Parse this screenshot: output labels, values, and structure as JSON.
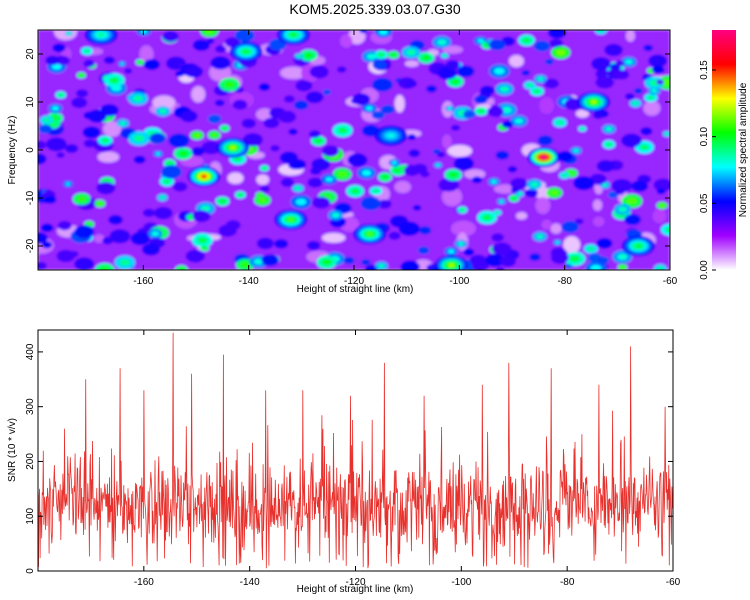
{
  "title": "KOM5.2025.339.03.07.G30",
  "chart_data": [
    {
      "type": "heatmap",
      "title": "KOM5.2025.339.03.07.G30",
      "xlabel": "Height of straight line (km)",
      "ylabel": "Frequency (Hz)",
      "xlim": [
        -180,
        -60
      ],
      "ylim": [
        -25,
        25
      ],
      "xticks": [
        -160,
        -140,
        -120,
        -100,
        -80,
        -60
      ],
      "yticks": [
        -20,
        -10,
        0,
        10,
        20
      ],
      "xtick_labels": [
        "-160",
        "-140",
        "-120",
        "-100",
        "-80",
        "-60"
      ],
      "ytick_labels": [
        "-20",
        "-10",
        "0",
        "10",
        "20"
      ],
      "background_level": 0.03,
      "noise_blobs": 420,
      "hotspots": [
        {
          "x": -148.5,
          "y": -5.5,
          "amp": 0.15
        },
        {
          "x": -84.0,
          "y": -1.5,
          "amp": 0.18
        },
        {
          "x": -143.0,
          "y": 0.5,
          "amp": 0.12
        },
        {
          "x": -132.0,
          "y": -14.5,
          "amp": 0.11
        },
        {
          "x": -117.0,
          "y": -17.5,
          "amp": 0.11
        },
        {
          "x": -101.5,
          "y": -24.0,
          "amp": 0.12
        },
        {
          "x": -74.5,
          "y": 10.0,
          "amp": 0.12
        },
        {
          "x": -140.5,
          "y": 20.5,
          "amp": 0.1
        },
        {
          "x": -131.5,
          "y": 24.0,
          "amp": 0.1
        },
        {
          "x": -168.0,
          "y": 24.0,
          "amp": 0.09
        },
        {
          "x": -66.0,
          "y": -20.0,
          "amp": 0.1
        },
        {
          "x": -113.0,
          "y": 3.0,
          "amp": 0.08
        }
      ],
      "colorbar": {
        "label": "Normalized spectral amplitude",
        "range": [
          0.0,
          0.18
        ],
        "ticks": [
          0.0,
          0.05,
          0.1,
          0.15
        ],
        "tick_labels": [
          "0.00",
          "0.05",
          "0.10",
          "0.15"
        ],
        "colors": [
          "#ffffff",
          "#a000ff",
          "#0000ff",
          "#00ffff",
          "#00ff00",
          "#ffff00",
          "#ff0000",
          "#ff0080"
        ]
      }
    },
    {
      "type": "line",
      "title": "",
      "xlabel": "Height of straight line (km)",
      "ylabel": "SNR (10 * v/v)",
      "xlim": [
        -180,
        -60
      ],
      "ylim": [
        0,
        440
      ],
      "xticks": [
        -160,
        -140,
        -120,
        -100,
        -80,
        -60
      ],
      "yticks": [
        0,
        100,
        200,
        300,
        400
      ],
      "xtick_labels": [
        "-160",
        "-140",
        "-120",
        "-100",
        "-80",
        "-60"
      ],
      "ytick_labels": [
        "0",
        "100",
        "200",
        "300",
        "400"
      ],
      "color": "#e8302c",
      "series": [
        {
          "name": "SNR",
          "points": 1200,
          "mean": 120,
          "spread": 70,
          "peaks": [
            {
              "x": -175.0,
              "y": 260
            },
            {
              "x": -171.0,
              "y": 350
            },
            {
              "x": -164.5,
              "y": 370
            },
            {
              "x": -160.0,
              "y": 330
            },
            {
              "x": -154.5,
              "y": 435
            },
            {
              "x": -151.0,
              "y": 360
            },
            {
              "x": -145.0,
              "y": 395
            },
            {
              "x": -137.0,
              "y": 330
            },
            {
              "x": -130.0,
              "y": 330
            },
            {
              "x": -121.0,
              "y": 320
            },
            {
              "x": -114.5,
              "y": 380
            },
            {
              "x": -107.0,
              "y": 320
            },
            {
              "x": -96.0,
              "y": 340
            },
            {
              "x": -91.0,
              "y": 380
            },
            {
              "x": -83.0,
              "y": 370
            },
            {
              "x": -74.0,
              "y": 340
            },
            {
              "x": -68.0,
              "y": 410
            },
            {
              "x": -61.5,
              "y": 300
            }
          ]
        }
      ]
    }
  ]
}
